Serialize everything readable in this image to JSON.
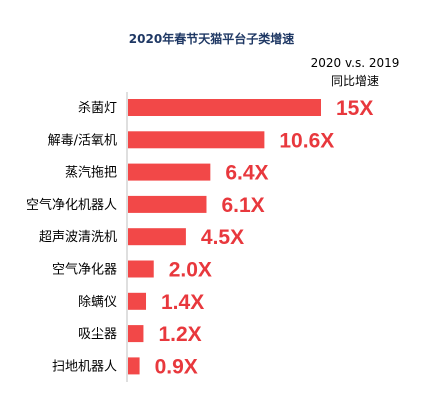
{
  "chart_data": {
    "type": "bar",
    "orientation": "horizontal",
    "title": "2020年春节天猫平台子类增速",
    "legend_line1": "2020 v.s. 2019",
    "legend_line2": "同比增速",
    "categories": [
      "杀菌灯",
      "解毒/活氧机",
      "蒸汽拖把",
      "空气净化机器人",
      "超声波清洗机",
      "空气净化器",
      "除螨仪",
      "吸尘器",
      "扫地机器人"
    ],
    "values": [
      15,
      10.6,
      6.4,
      6.1,
      4.5,
      2.0,
      1.4,
      1.2,
      0.9
    ],
    "data_labels": [
      "15X",
      "10.6X",
      "6.4X",
      "6.1X",
      "4.5X",
      "2.0X",
      "1.4X",
      "1.2X",
      "0.9X"
    ],
    "xlim": [
      0,
      15
    ],
    "bar_color": "#f24848",
    "label_color": "#e8383d",
    "title_color": "#1f3864",
    "axis_color": "#bfbfbf"
  }
}
